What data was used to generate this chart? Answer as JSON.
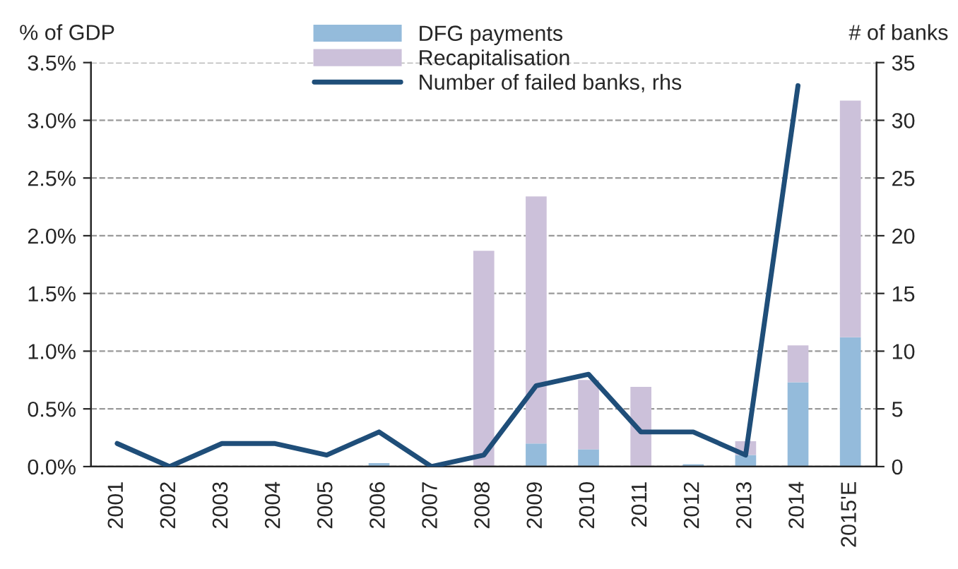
{
  "chart_data": {
    "type": "bar",
    "stacked": true,
    "ylabel": "% of GDP",
    "y2label": "# of banks",
    "categories": [
      "2001",
      "2002",
      "2003",
      "2004",
      "2005",
      "2006",
      "2007",
      "2008",
      "2009",
      "2010",
      "2011",
      "2012",
      "2013",
      "2014",
      "2015'E"
    ],
    "series": [
      {
        "name": "DFG payments",
        "color": "#94bbdb",
        "values": [
          null,
          null,
          null,
          null,
          null,
          0.03,
          null,
          null,
          0.2,
          0.15,
          null,
          0.02,
          0.1,
          0.73,
          1.12
        ]
      },
      {
        "name": "Recapitalisation",
        "color": "#ccc1da",
        "values": [
          null,
          null,
          null,
          null,
          null,
          null,
          null,
          1.87,
          2.14,
          0.6,
          0.69,
          null,
          0.12,
          0.32,
          2.05
        ]
      },
      {
        "name": "Number of failed banks, rhs",
        "type": "line",
        "axis": "y2",
        "color": "#1f4e79",
        "values": [
          2,
          0,
          2,
          2,
          1,
          3,
          0,
          1,
          7,
          8,
          3,
          3,
          1,
          33,
          null
        ]
      }
    ],
    "ylim": [
      0,
      3.5
    ],
    "yticks": [
      {
        "value": 0,
        "label": "0.0%"
      },
      {
        "value": 0.5,
        "label": "0.5%"
      },
      {
        "value": 1,
        "label": "1.0%"
      },
      {
        "value": 1.5,
        "label": "1.5%"
      },
      {
        "value": 2,
        "label": "2.0%"
      },
      {
        "value": 2.5,
        "label": "2.5%"
      },
      {
        "value": 3,
        "label": "3.0%"
      },
      {
        "value": 3.5,
        "label": "3.5%"
      }
    ],
    "y2lim": [
      0,
      35
    ],
    "y2ticks": [
      0,
      5,
      10,
      15,
      20,
      25,
      30,
      35
    ],
    "grid": "y",
    "legend": "top"
  }
}
